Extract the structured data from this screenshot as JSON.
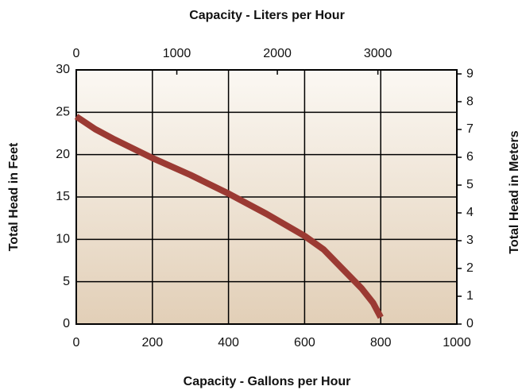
{
  "chart_data": {
    "type": "line",
    "xlabel": "Capacity - Gallons per Hour",
    "x2label": "Capacity - Liters per Hour",
    "ylabel": "Total Head in Feet",
    "y2label": "Total Head in Meters",
    "x": [
      0,
      50,
      100,
      200,
      300,
      400,
      500,
      600,
      650,
      700,
      750,
      780,
      800
    ],
    "series": [
      {
        "color": "#9b3a33",
        "values": [
          24.5,
          23,
          21.8,
          19.6,
          17.6,
          15.4,
          13,
          10.4,
          8.8,
          6.5,
          4.2,
          2.5,
          0.8
        ]
      }
    ],
    "xlim": [
      0,
      1000
    ],
    "xticks": [
      0,
      200,
      400,
      600,
      800,
      1000
    ],
    "x2lim": [
      0,
      3785.4
    ],
    "x2ticks": [
      0,
      1000,
      2000,
      3000
    ],
    "ylim": [
      0,
      30
    ],
    "yticks": [
      0,
      5,
      10,
      15,
      20,
      25,
      30
    ],
    "y2lim": [
      0,
      9.144
    ],
    "y2ticks": [
      0,
      1,
      2,
      3,
      4,
      5,
      6,
      7,
      8,
      9
    ],
    "grid": true
  }
}
